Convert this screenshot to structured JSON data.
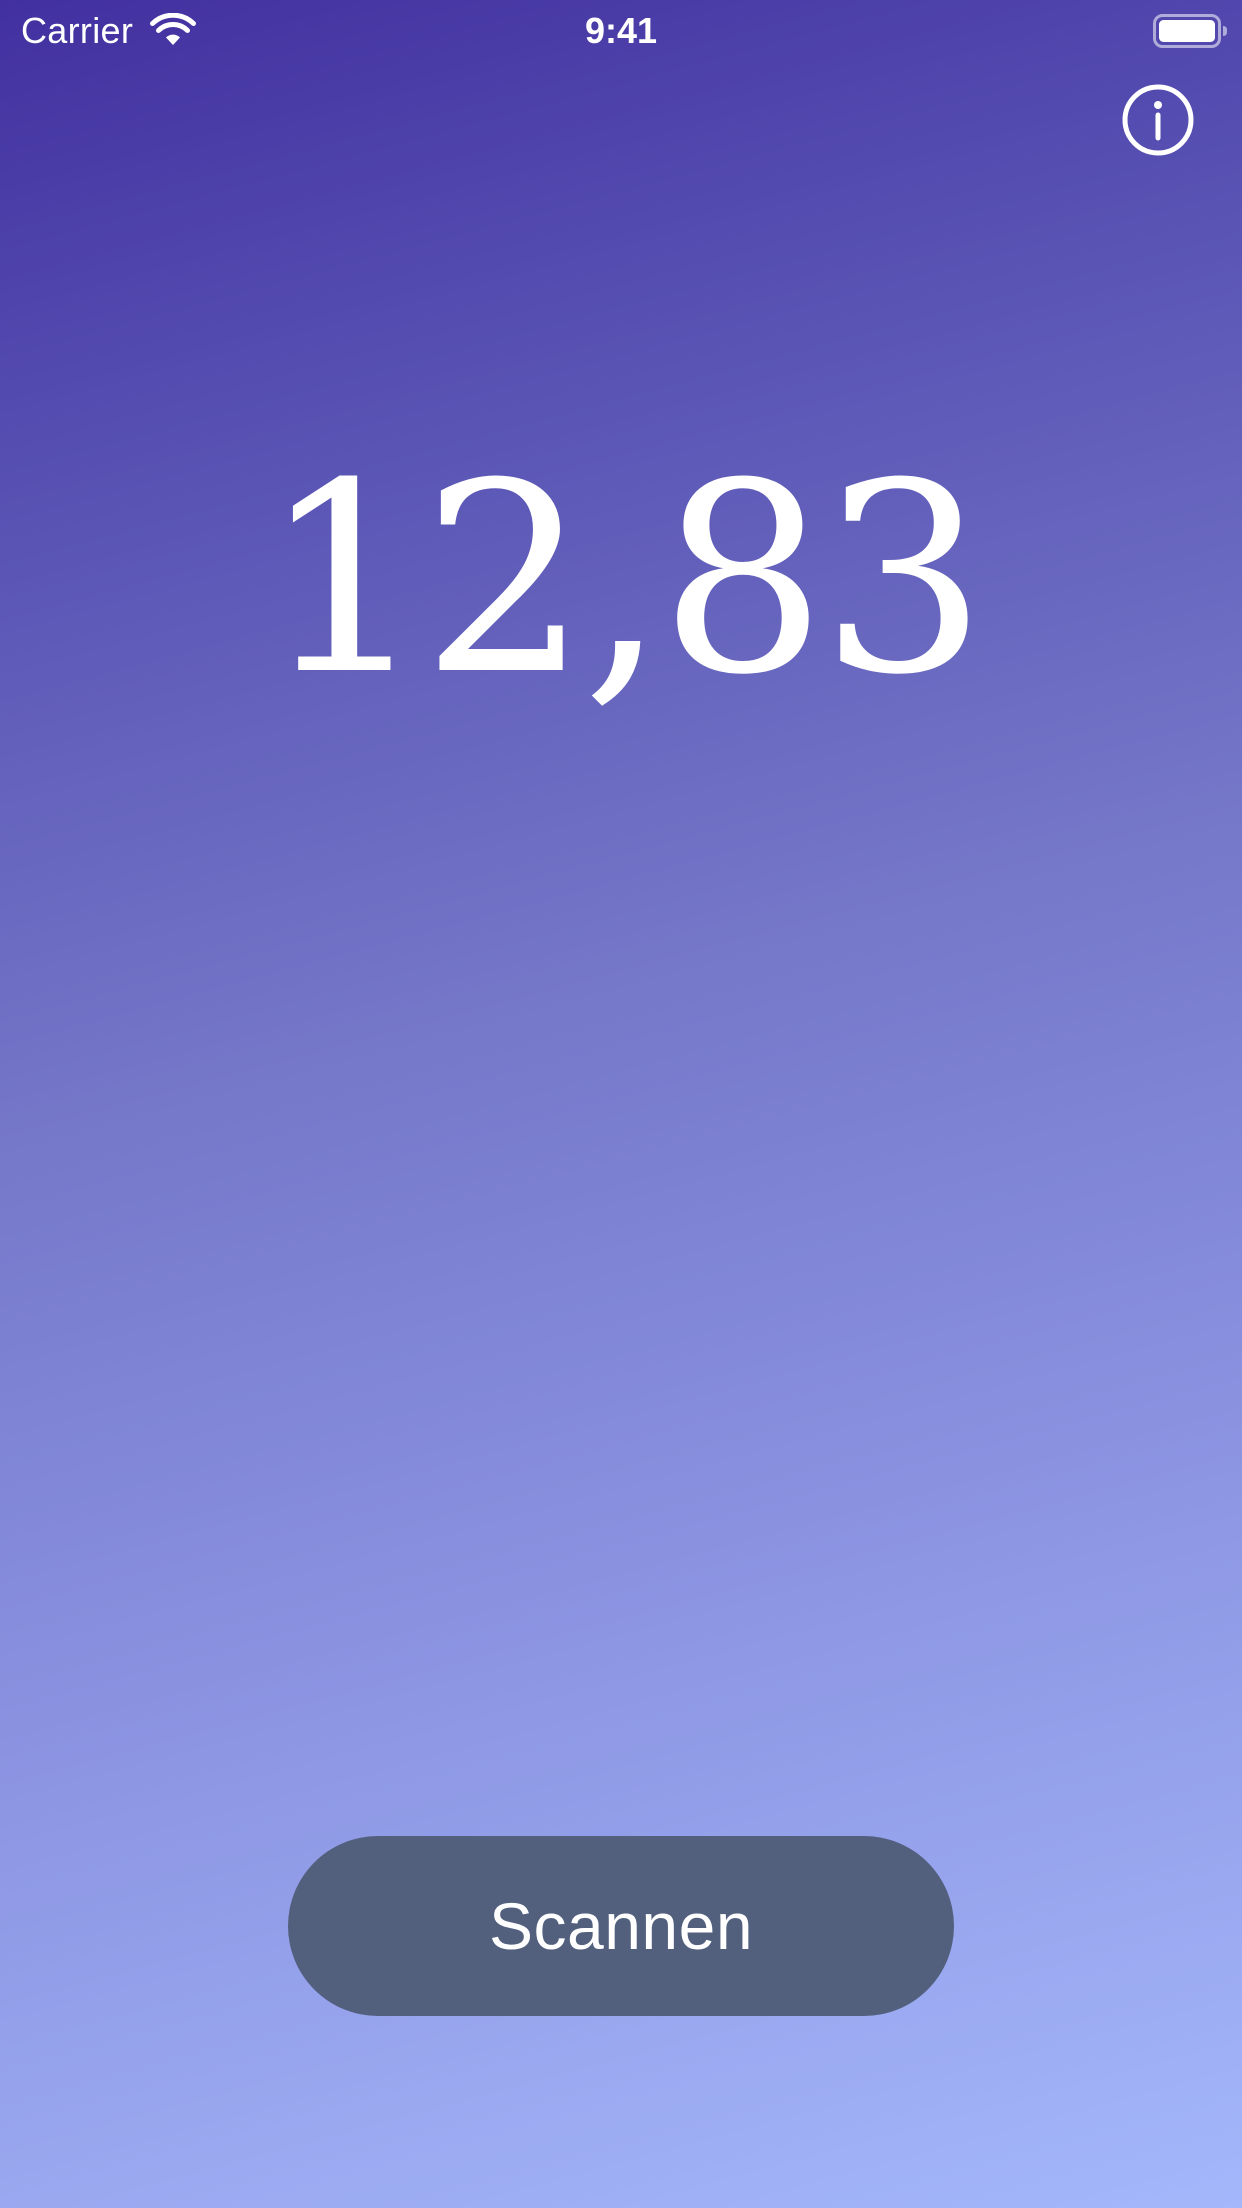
{
  "status_bar": {
    "carrier": "Carrier",
    "time": "9:41"
  },
  "display": {
    "value": "12,83"
  },
  "actions": {
    "scan_label": "Scannen"
  },
  "icons": {
    "wifi": "wifi-icon",
    "battery": "battery-icon",
    "info": "info-icon"
  },
  "colors": {
    "gradient_start": "#4230a0",
    "gradient_end": "#a4b7fb",
    "button_background": "#52607e",
    "foreground": "#ffffff"
  }
}
